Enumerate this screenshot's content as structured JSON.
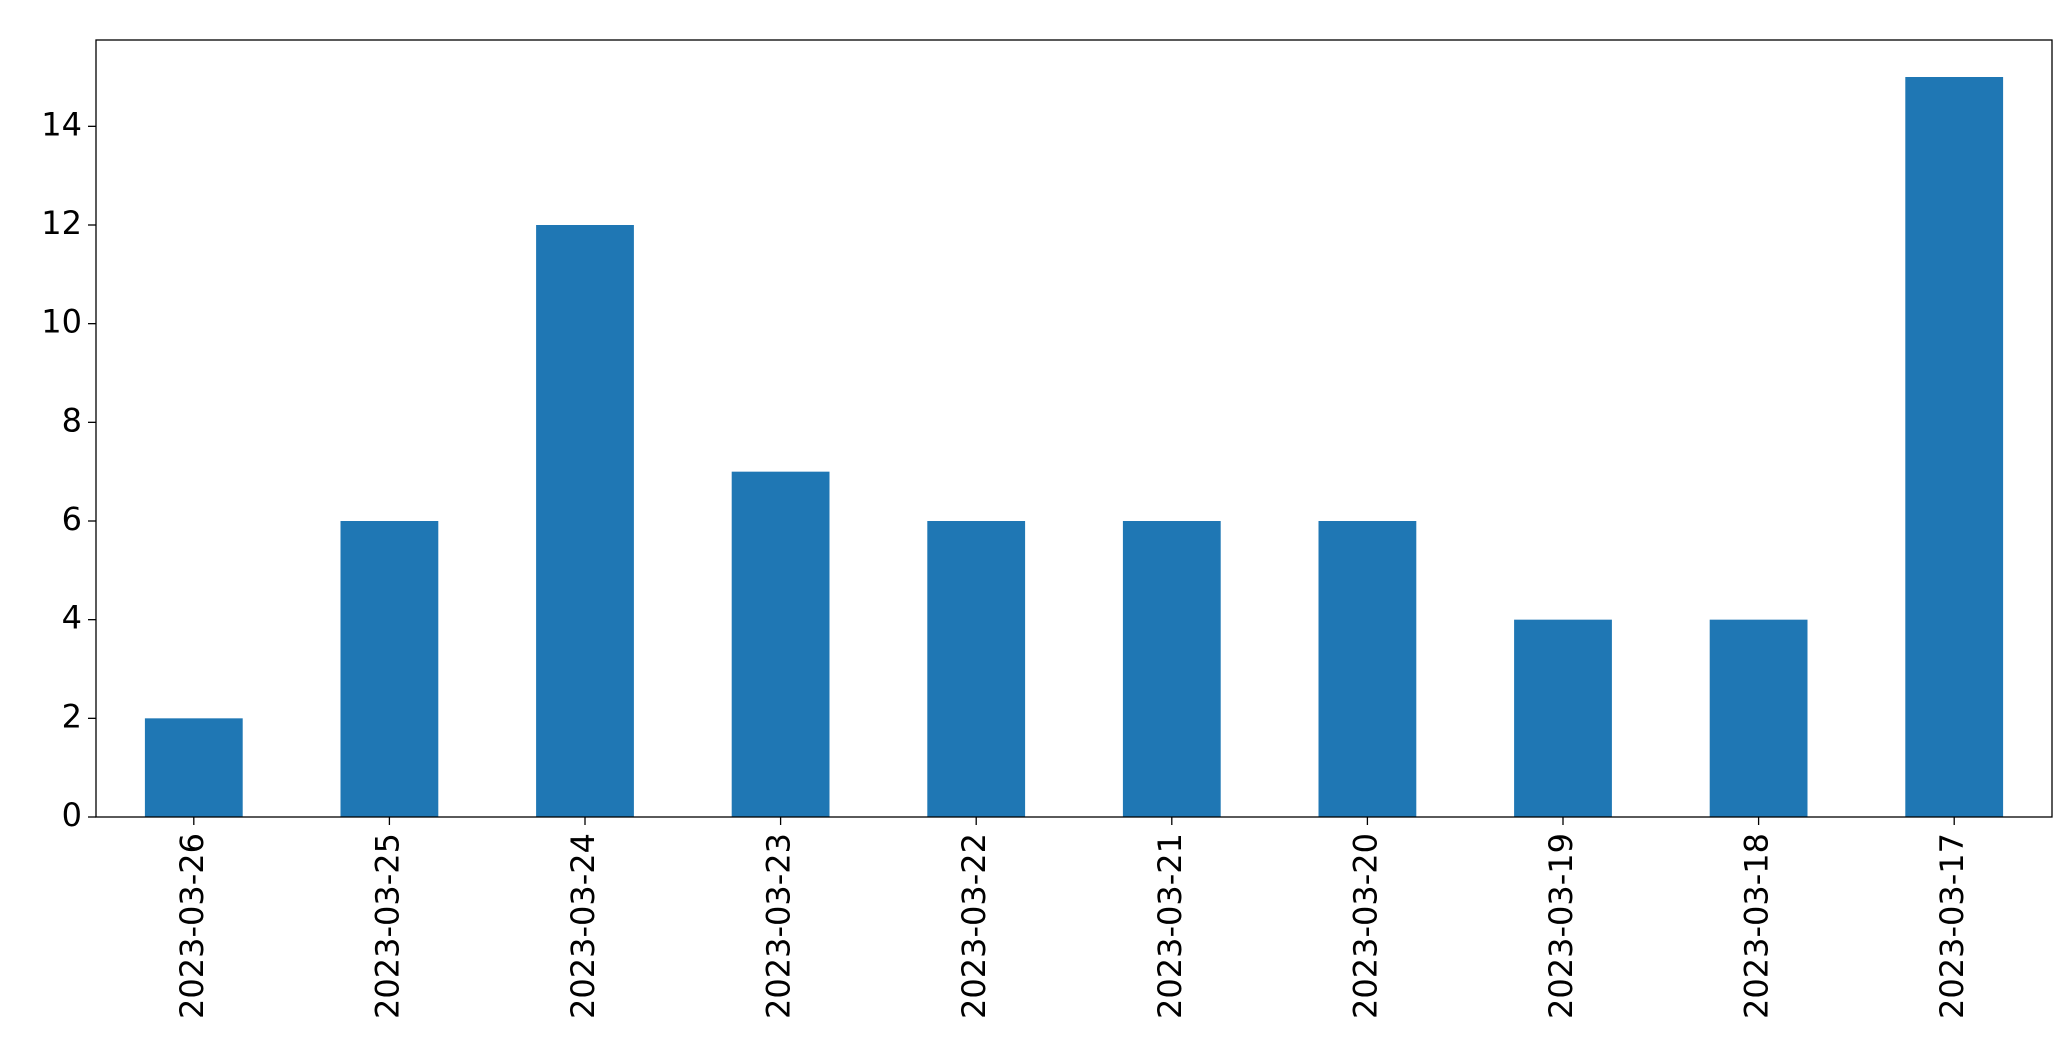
{
  "chart_data": {
    "type": "bar",
    "categories": [
      "2023-03-26",
      "2023-03-25",
      "2023-03-24",
      "2023-03-23",
      "2023-03-22",
      "2023-03-21",
      "2023-03-20",
      "2023-03-19",
      "2023-03-18",
      "2023-03-17"
    ],
    "values": [
      2,
      6,
      12,
      7,
      6,
      6,
      6,
      4,
      4,
      15
    ],
    "color": "#1f77b4",
    "ylim": [
      0,
      15.75
    ],
    "yticks": [
      0,
      2,
      4,
      6,
      8,
      10,
      12,
      14
    ],
    "grid": false
  }
}
